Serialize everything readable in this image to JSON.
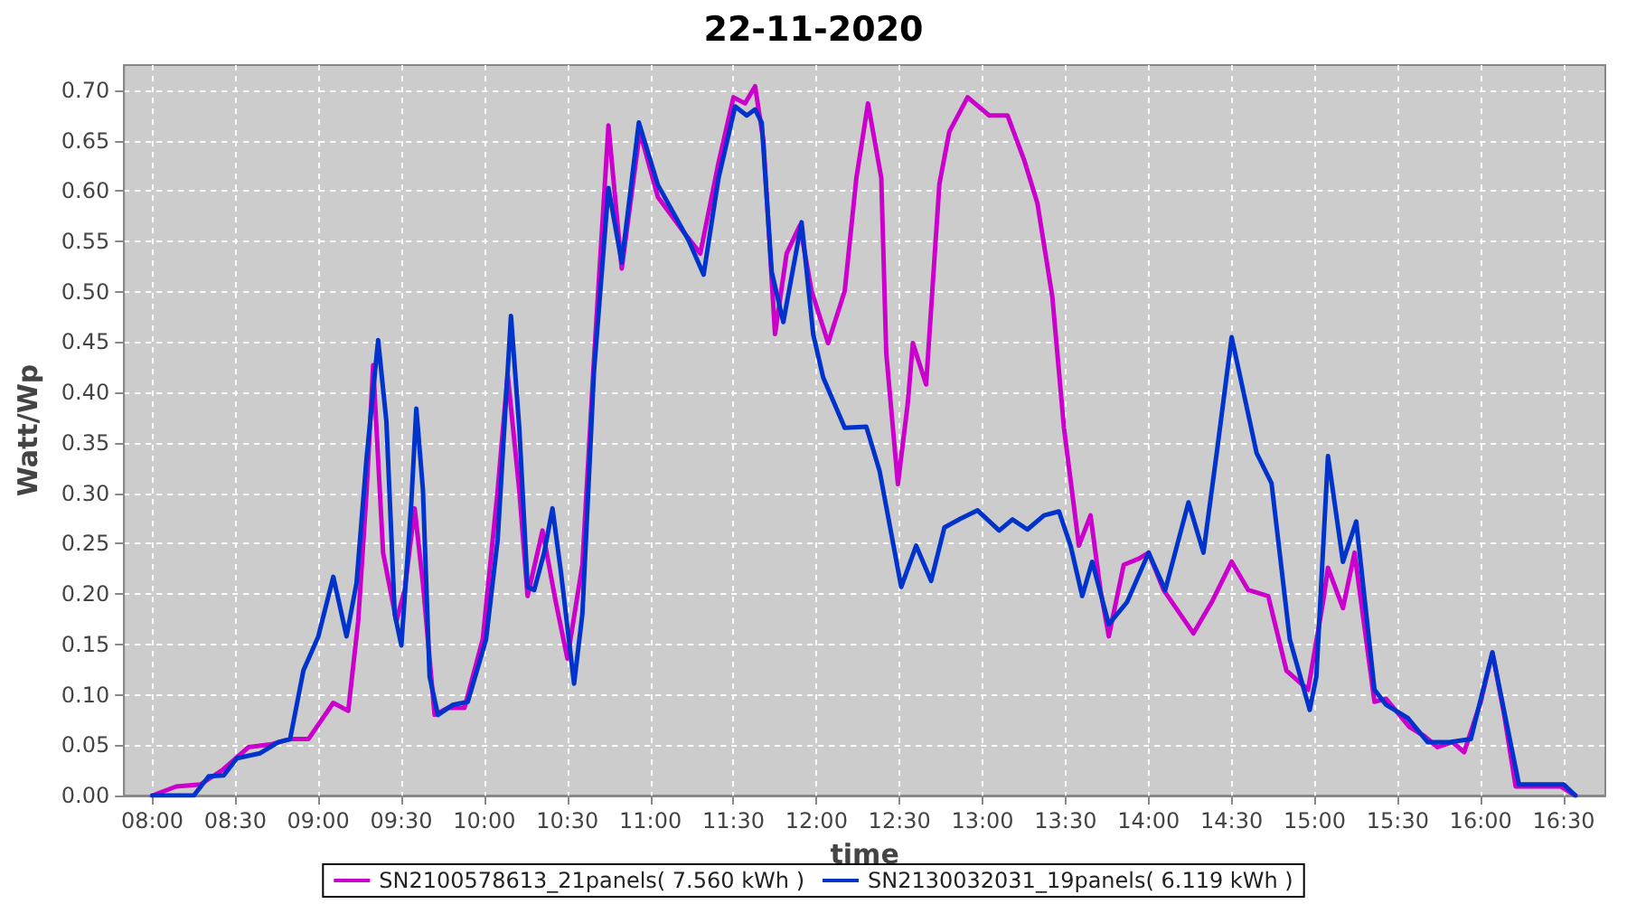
{
  "chart_data": {
    "type": "line",
    "title": "22-11-2020",
    "xlabel": "time",
    "ylabel": "Watt/Wp",
    "xlim": [
      7.83,
      16.75
    ],
    "ylim": [
      0,
      0.725
    ],
    "xticks": [
      {
        "value": 8,
        "label": "08:00"
      },
      {
        "value": 8.5,
        "label": "08:30"
      },
      {
        "value": 9,
        "label": "09:00"
      },
      {
        "value": 9.5,
        "label": "09:30"
      },
      {
        "value": 10,
        "label": "10:00"
      },
      {
        "value": 10.5,
        "label": "10:30"
      },
      {
        "value": 11,
        "label": "11:00"
      },
      {
        "value": 11.5,
        "label": "11:30"
      },
      {
        "value": 12,
        "label": "12:00"
      },
      {
        "value": 12.5,
        "label": "12:30"
      },
      {
        "value": 13,
        "label": "13:00"
      },
      {
        "value": 13.5,
        "label": "13:30"
      },
      {
        "value": 14,
        "label": "14:00"
      },
      {
        "value": 14.5,
        "label": "14:30"
      },
      {
        "value": 15,
        "label": "15:00"
      },
      {
        "value": 15.5,
        "label": "15:30"
      },
      {
        "value": 16,
        "label": "16:00"
      },
      {
        "value": 16.5,
        "label": "16:30"
      }
    ],
    "yticks": [
      {
        "value": 0,
        "label": "0.00"
      },
      {
        "value": 0.05,
        "label": "0.05"
      },
      {
        "value": 0.1,
        "label": "0.10"
      },
      {
        "value": 0.15,
        "label": "0.15"
      },
      {
        "value": 0.2,
        "label": "0.20"
      },
      {
        "value": 0.25,
        "label": "0.25"
      },
      {
        "value": 0.3,
        "label": "0.30"
      },
      {
        "value": 0.35,
        "label": "0.35"
      },
      {
        "value": 0.4,
        "label": "0.40"
      },
      {
        "value": 0.45,
        "label": "0.45"
      },
      {
        "value": 0.5,
        "label": "0.50"
      },
      {
        "value": 0.55,
        "label": "0.55"
      },
      {
        "value": 0.6,
        "label": "0.60"
      },
      {
        "value": 0.65,
        "label": "0.65"
      },
      {
        "value": 0.7,
        "label": "0.70"
      }
    ],
    "grid": true,
    "legend": "bottom",
    "marker": "none",
    "line_style": "solid",
    "series": [
      {
        "name": "SN2100578613_21panels( 7.560 kWh )",
        "color": "#cc00cc",
        "x": [
          8.0,
          8.145,
          8.29,
          8.42,
          8.58,
          8.72,
          8.83,
          8.94,
          9.09,
          9.18,
          9.24,
          9.29,
          9.33,
          9.39,
          9.47,
          9.52,
          9.58,
          9.63,
          9.7,
          9.78,
          9.88,
          9.99,
          10.08,
          10.14,
          10.21,
          10.26,
          10.35,
          10.43,
          10.5,
          10.59,
          10.66,
          10.747,
          10.827,
          10.936,
          11.045,
          11.21,
          11.3,
          11.41,
          11.5,
          11.57,
          11.63,
          11.68,
          11.75,
          11.82,
          11.9,
          11.97,
          12.07,
          12.17,
          12.24,
          12.31,
          12.39,
          12.42,
          12.49,
          12.55,
          12.58,
          12.66,
          12.74,
          12.8,
          12.91,
          13.04,
          13.15,
          13.25,
          13.33,
          13.42,
          13.49,
          13.58,
          13.65,
          13.71,
          13.76,
          13.85,
          13.94,
          14.0,
          14.09,
          14.27,
          14.38,
          14.5,
          14.6,
          14.72,
          14.83,
          14.96,
          15.05,
          15.08,
          15.17,
          15.24,
          15.36,
          15.43,
          15.57,
          15.66,
          15.74,
          15.83,
          15.9,
          16.0,
          16.07,
          16.14,
          16.21,
          16.3,
          16.48,
          16.57
        ],
        "values": [
          0,
          0.009,
          0.011,
          0.025,
          0.048,
          0.051,
          0.056,
          0.056,
          0.092,
          0.084,
          0.173,
          0.3,
          0.427,
          0.241,
          0.173,
          0.204,
          0.285,
          0.21,
          0.08,
          0.087,
          0.087,
          0.155,
          0.303,
          0.418,
          0.303,
          0.198,
          0.263,
          0.192,
          0.136,
          0.229,
          0.433,
          0.665,
          0.523,
          0.659,
          0.594,
          0.557,
          0.538,
          0.628,
          0.693,
          0.687,
          0.704,
          0.65,
          0.458,
          0.538,
          0.566,
          0.501,
          0.449,
          0.501,
          0.613,
          0.687,
          0.613,
          0.439,
          0.309,
          0.39,
          0.449,
          0.408,
          0.607,
          0.659,
          0.693,
          0.675,
          0.675,
          0.631,
          0.588,
          0.495,
          0.365,
          0.248,
          0.278,
          0.204,
          0.158,
          0.229,
          0.235,
          0.241,
          0.204,
          0.161,
          0.192,
          0.232,
          0.204,
          0.198,
          0.124,
          0.105,
          0.192,
          0.226,
          0.186,
          0.241,
          0.093,
          0.096,
          0.068,
          0.059,
          0.048,
          0.053,
          0.043,
          0.093,
          0.142,
          0.081,
          0.009,
          0.009,
          0.009,
          0
        ]
      },
      {
        "name": "SN2130032031_19panels( 6.119 kWh )",
        "color": "#0033cc",
        "x": [
          8.0,
          8.145,
          8.25,
          8.34,
          8.43,
          8.51,
          8.65,
          8.76,
          8.83,
          8.91,
          9.0,
          9.09,
          9.17,
          9.23,
          9.29,
          9.36,
          9.41,
          9.46,
          9.5,
          9.56,
          9.59,
          9.63,
          9.67,
          9.72,
          9.81,
          9.9,
          10.01,
          10.08,
          10.16,
          10.21,
          10.26,
          10.3,
          10.36,
          10.41,
          10.46,
          10.54,
          10.59,
          10.66,
          10.747,
          10.827,
          10.93,
          11.045,
          11.23,
          11.32,
          11.41,
          11.51,
          11.58,
          11.63,
          11.67,
          11.73,
          11.8,
          11.91,
          11.98,
          12.04,
          12.17,
          12.3,
          12.38,
          12.51,
          12.6,
          12.69,
          12.77,
          12.87,
          12.97,
          13.1,
          13.18,
          13.27,
          13.37,
          13.46,
          13.53,
          13.6,
          13.66,
          13.76,
          13.87,
          14.0,
          14.1,
          14.24,
          14.33,
          14.41,
          14.5,
          14.65,
          14.74,
          14.85,
          14.97,
          15.01,
          15.08,
          15.17,
          15.25,
          15.36,
          15.43,
          15.56,
          15.68,
          15.81,
          15.94,
          16.07,
          16.16,
          16.23,
          16.5,
          16.57
        ],
        "values": [
          0,
          0,
          0,
          0.019,
          0.02,
          0.037,
          0.042,
          0.053,
          0.056,
          0.124,
          0.158,
          0.217,
          0.158,
          0.211,
          0.334,
          0.452,
          0.371,
          0.18,
          0.149,
          0.291,
          0.384,
          0.303,
          0.118,
          0.08,
          0.09,
          0.093,
          0.155,
          0.254,
          0.476,
          0.365,
          0.207,
          0.204,
          0.241,
          0.285,
          0.223,
          0.111,
          0.18,
          0.421,
          0.603,
          0.529,
          0.668,
          0.606,
          0.551,
          0.517,
          0.613,
          0.684,
          0.675,
          0.681,
          0.668,
          0.52,
          0.47,
          0.569,
          0.458,
          0.415,
          0.365,
          0.366,
          0.322,
          0.207,
          0.248,
          0.213,
          0.266,
          0.275,
          0.283,
          0.263,
          0.274,
          0.264,
          0.278,
          0.282,
          0.248,
          0.198,
          0.232,
          0.17,
          0.192,
          0.241,
          0.204,
          0.291,
          0.241,
          0.34,
          0.455,
          0.34,
          0.31,
          0.155,
          0.085,
          0.118,
          0.337,
          0.232,
          0.272,
          0.105,
          0.09,
          0.077,
          0.053,
          0.053,
          0.056,
          0.142,
          0.068,
          0.011,
          0.011,
          0
        ]
      }
    ]
  }
}
